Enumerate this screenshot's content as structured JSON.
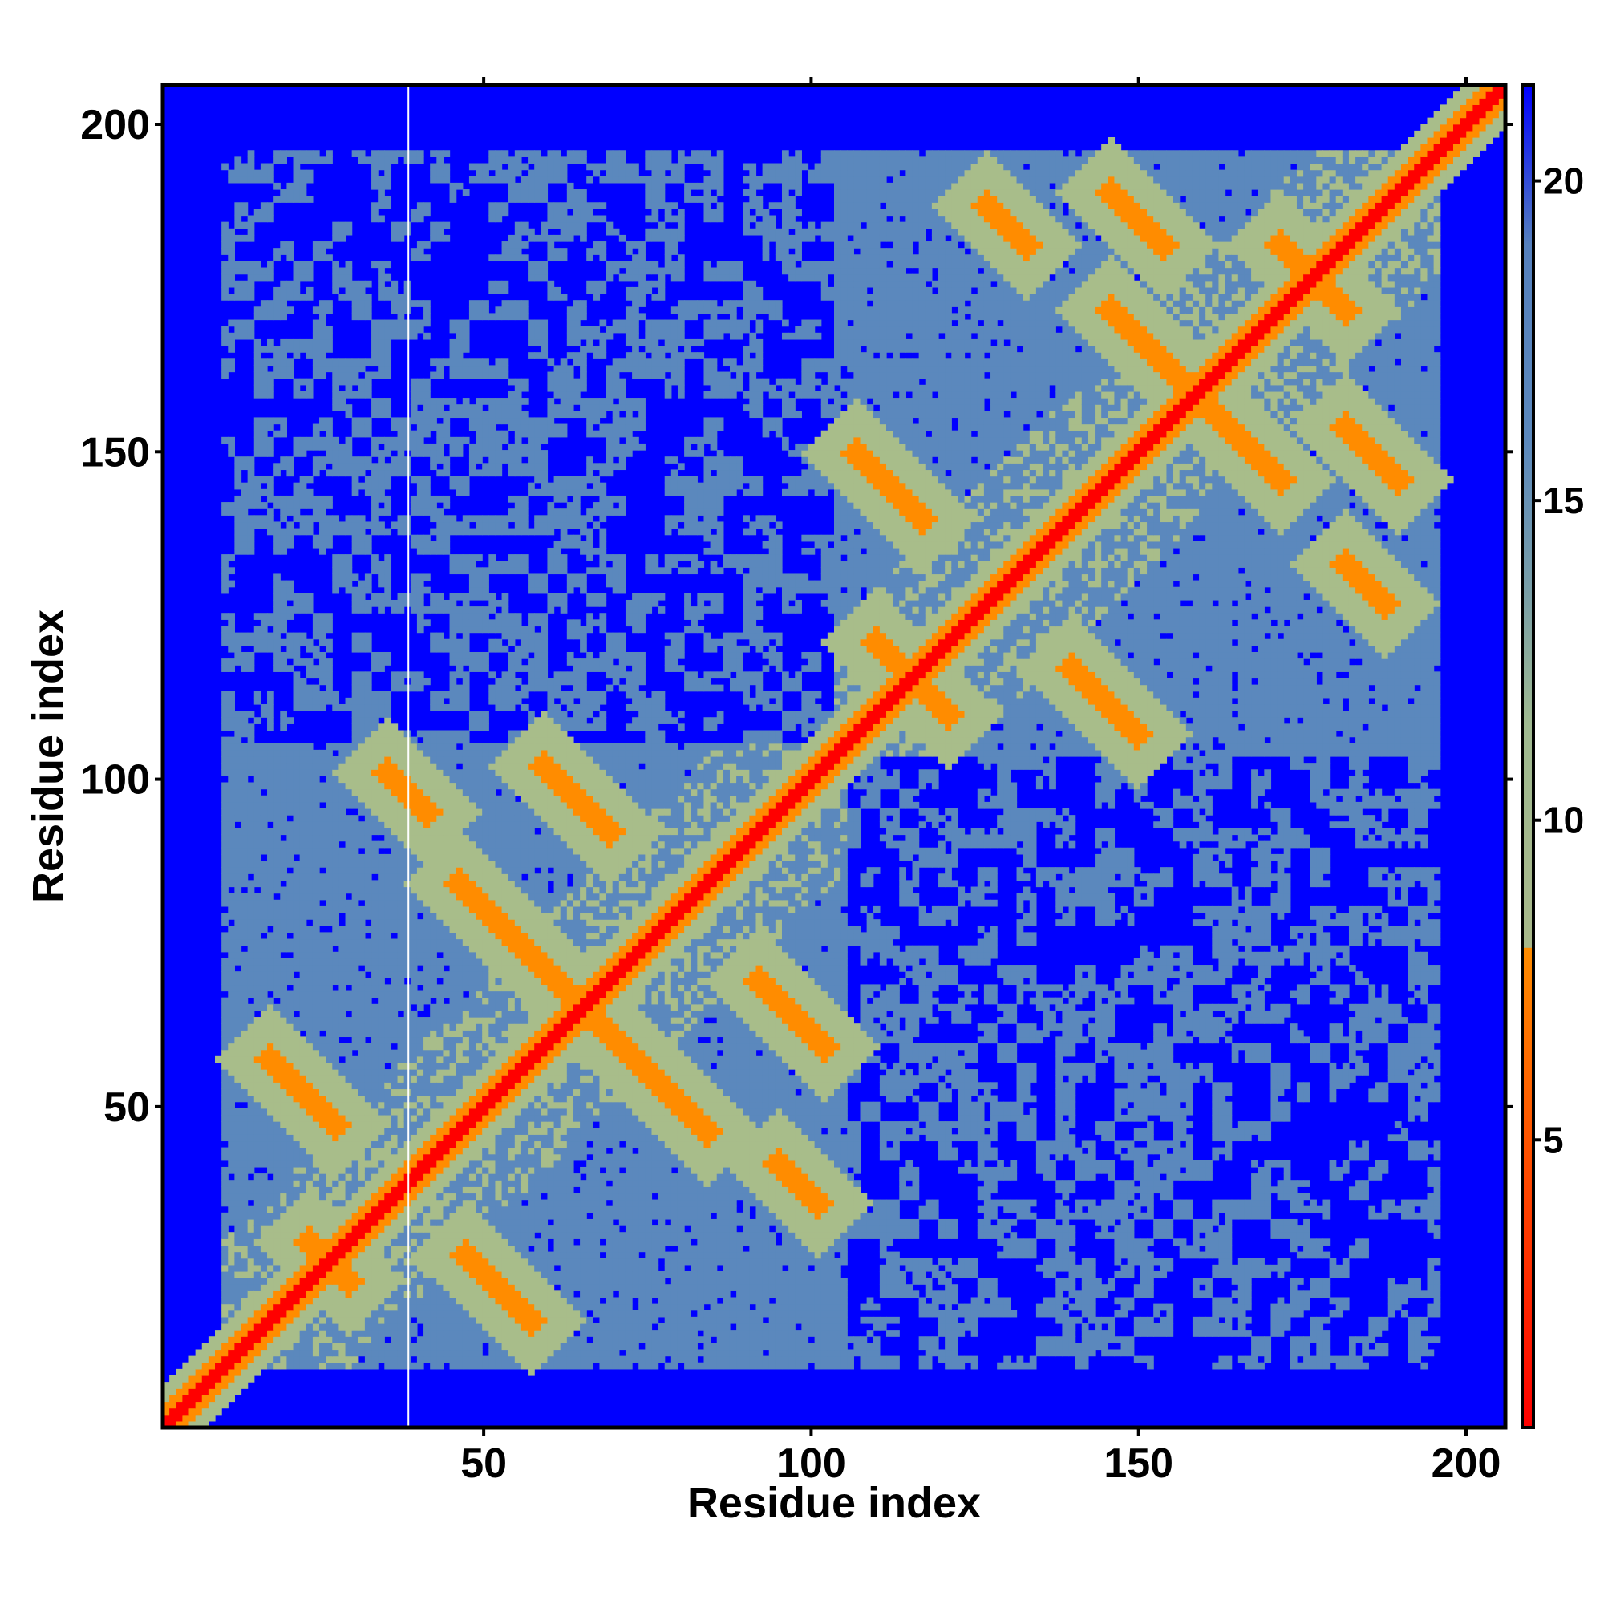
{
  "chart_data": {
    "type": "heatmap",
    "title": "",
    "xlabel": "Residue index",
    "ylabel": "Residue index",
    "xlim": [
      1,
      206
    ],
    "ylim": [
      1,
      206
    ],
    "x_ticks": [
      50,
      100,
      150,
      200
    ],
    "y_ticks": [
      50,
      100,
      150,
      200
    ],
    "n_residues": 206,
    "colorbar": {
      "ticks": [
        5,
        10,
        15,
        20
      ],
      "range": [
        0.5,
        21.5
      ],
      "stops": [
        {
          "value": 0.5,
          "color": "#ff0000"
        },
        {
          "value": 8,
          "color": "#ff8c00"
        },
        {
          "value": 8.01,
          "color": "#a8b88a"
        },
        {
          "value": 11.5,
          "color": "#9fb990"
        },
        {
          "value": 13.5,
          "color": "#7a9fa6"
        },
        {
          "value": 16,
          "color": "#5b88bd"
        },
        {
          "value": 19,
          "color": "#5580bd"
        },
        {
          "value": 21.5,
          "color": "#0000ff"
        }
      ]
    },
    "colors": {
      "far": "#0000ff",
      "mid": "#5b88bd",
      "near": "#a8bd8a",
      "contact": "#ff8c00",
      "diagonal": "#ff0000"
    },
    "domains": [
      {
        "start": 10,
        "end": 105
      },
      {
        "start": 104,
        "end": 196
      }
    ],
    "contact_features": [
      {
        "x": 30,
        "y": 22,
        "direction": "anti",
        "length": 8
      },
      {
        "x": 22,
        "y": 52,
        "direction": "anti",
        "length": 6
      },
      {
        "x": 53,
        "y": 22,
        "direction": "anti",
        "length": 7
      },
      {
        "x": 75,
        "y": 53,
        "direction": "anti",
        "length": 10
      },
      {
        "x": 55,
        "y": 75,
        "direction": "anti",
        "length": 10
      },
      {
        "x": 64,
        "y": 97,
        "direction": "anti",
        "length": 6
      },
      {
        "x": 95,
        "y": 62,
        "direction": "anti",
        "length": 6
      },
      {
        "x": 38,
        "y": 98,
        "direction": "anti",
        "length": 4
      },
      {
        "x": 95,
        "y": 40,
        "direction": "anti",
        "length": 5
      },
      {
        "x": 112,
        "y": 145,
        "direction": "anti",
        "length": 6
      },
      {
        "x": 118,
        "y": 113,
        "direction": "anti",
        "length": 9
      },
      {
        "x": 145,
        "y": 112,
        "direction": "anti",
        "length": 6
      },
      {
        "x": 163,
        "y": 155,
        "direction": "anti",
        "length": 10
      },
      {
        "x": 155,
        "y": 163,
        "direction": "anti",
        "length": 10
      },
      {
        "x": 185,
        "y": 153,
        "direction": "anti",
        "length": 6
      },
      {
        "x": 150,
        "y": 186,
        "direction": "anti",
        "length": 5
      },
      {
        "x": 130,
        "y": 185,
        "direction": "anti",
        "length": 4
      },
      {
        "x": 176,
        "y": 178,
        "direction": "anti",
        "length": 5
      },
      {
        "x": 186,
        "y": 128,
        "direction": "anti",
        "length": 4
      }
    ]
  }
}
